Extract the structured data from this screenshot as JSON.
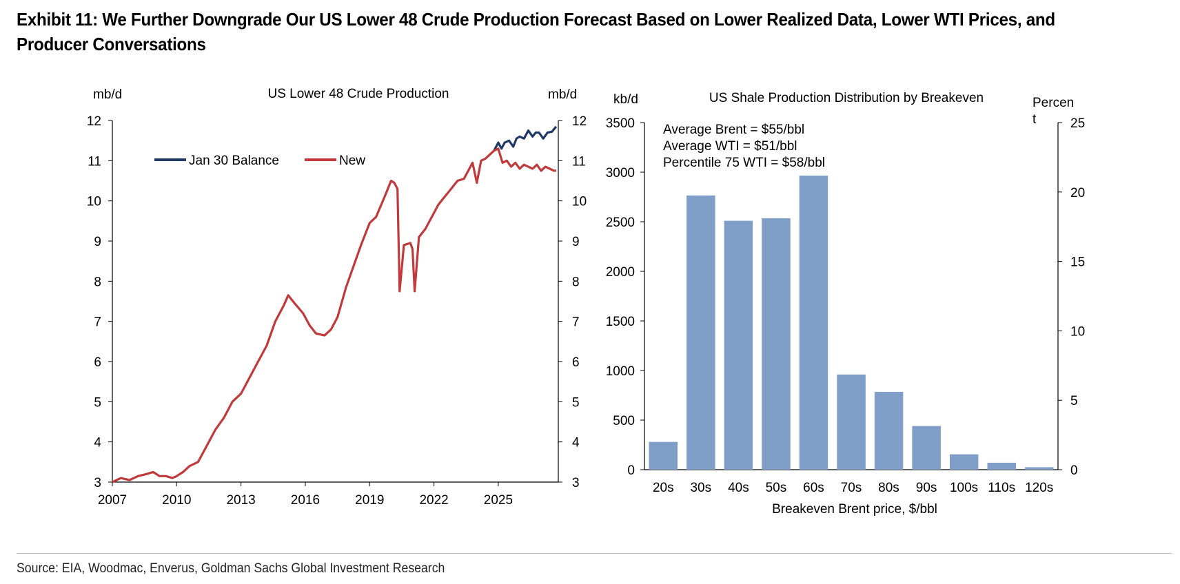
{
  "exhibit_title": "Exhibit 11: We Further Downgrade Our US Lower 48 Crude Production Forecast Based on Lower Realized Data, Lower WTI Prices, and Producer Conversations",
  "source": "Source: EIA, Woodmac, Enverus, Goldman Sachs Global Investment Research",
  "colors": {
    "jan30": "#1f3864",
    "new": "#c0393b",
    "bars": "#7f9ec8"
  },
  "chart_data": [
    {
      "type": "line",
      "title": "US Lower 48 Crude Production",
      "ylabel_left": "mb/d",
      "ylabel_right": "mb/d",
      "ylim": [
        3,
        12
      ],
      "xlim": [
        2007,
        2027.8
      ],
      "x_ticks": [
        "2007",
        "2010",
        "2013",
        "2016",
        "2019",
        "2022",
        "2025"
      ],
      "y_ticks": [
        "3",
        "4",
        "5",
        "6",
        "7",
        "8",
        "9",
        "10",
        "11",
        "12"
      ],
      "legend_position": "top-left",
      "series": [
        {
          "name": "Jan 30 Balance",
          "x": [
            2024.8,
            2025.0,
            2025.15,
            2025.3,
            2025.5,
            2025.7,
            2025.85,
            2026.0,
            2026.2,
            2026.4,
            2026.6,
            2026.75,
            2026.9,
            2027.1,
            2027.3,
            2027.5,
            2027.7
          ],
          "y": [
            11.25,
            11.45,
            11.3,
            11.45,
            11.5,
            11.35,
            11.55,
            11.6,
            11.55,
            11.75,
            11.6,
            11.7,
            11.7,
            11.55,
            11.7,
            11.72,
            11.85
          ]
        },
        {
          "name": "New",
          "x": [
            2007.0,
            2007.4,
            2007.8,
            2008.2,
            2008.6,
            2008.9,
            2009.2,
            2009.5,
            2009.8,
            2010.0,
            2010.3,
            2010.6,
            2011.0,
            2011.4,
            2011.8,
            2012.2,
            2012.6,
            2013.0,
            2013.4,
            2013.8,
            2014.2,
            2014.6,
            2015.0,
            2015.2,
            2015.5,
            2015.9,
            2016.2,
            2016.5,
            2016.9,
            2017.2,
            2017.5,
            2017.9,
            2018.2,
            2018.6,
            2019.0,
            2019.3,
            2019.7,
            2020.0,
            2020.15,
            2020.3,
            2020.4,
            2020.6,
            2020.9,
            2021.0,
            2021.1,
            2021.3,
            2021.6,
            2021.9,
            2022.2,
            2022.5,
            2022.8,
            2023.1,
            2023.4,
            2023.6,
            2023.8,
            2024.0,
            2024.2,
            2024.4,
            2024.6,
            2024.8,
            2025.0,
            2025.2,
            2025.4,
            2025.6,
            2025.8,
            2026.0,
            2026.2,
            2026.4,
            2026.6,
            2026.8,
            2027.0,
            2027.2,
            2027.4,
            2027.6,
            2027.7
          ],
          "y": [
            3.0,
            3.1,
            3.05,
            3.15,
            3.2,
            3.25,
            3.15,
            3.15,
            3.1,
            3.15,
            3.25,
            3.4,
            3.5,
            3.9,
            4.3,
            4.6,
            5.0,
            5.2,
            5.6,
            6.0,
            6.4,
            7.0,
            7.4,
            7.65,
            7.45,
            7.2,
            6.9,
            6.7,
            6.65,
            6.8,
            7.1,
            7.85,
            8.3,
            8.9,
            9.45,
            9.6,
            10.1,
            10.5,
            10.45,
            10.3,
            7.75,
            8.9,
            8.95,
            8.8,
            7.75,
            9.1,
            9.3,
            9.6,
            9.9,
            10.1,
            10.3,
            10.5,
            10.55,
            10.75,
            10.95,
            10.45,
            11.0,
            11.05,
            11.15,
            11.25,
            11.3,
            10.95,
            11.0,
            10.85,
            10.95,
            10.8,
            10.9,
            10.85,
            10.8,
            10.9,
            10.75,
            10.85,
            10.8,
            10.75,
            10.75
          ]
        }
      ]
    },
    {
      "type": "bar",
      "title": "US Shale Production Distribution by Breakeven",
      "ylabel_left": "kb/d",
      "ylabel_right": "Percent",
      "xlabel": "Breakeven Brent price, $/bbl",
      "ylim": [
        0,
        3500
      ],
      "ylim_right": [
        0,
        25
      ],
      "y_ticks": [
        "0",
        "500",
        "1000",
        "1500",
        "2000",
        "2500",
        "3000",
        "3500"
      ],
      "y_ticks_right": [
        "0",
        "5",
        "10",
        "15",
        "20",
        "25"
      ],
      "categories": [
        "20s",
        "30s",
        "40s",
        "50s",
        "60s",
        "70s",
        "80s",
        "90s",
        "100s",
        "110s",
        "120s"
      ],
      "values": [
        280,
        2765,
        2510,
        2535,
        2965,
        960,
        785,
        440,
        155,
        70,
        25
      ],
      "annotations": [
        "Average Brent = $55/bbl",
        "Average WTI = $51/bbl",
        "Percentile 75 WTI =  $58/bbl"
      ]
    }
  ]
}
